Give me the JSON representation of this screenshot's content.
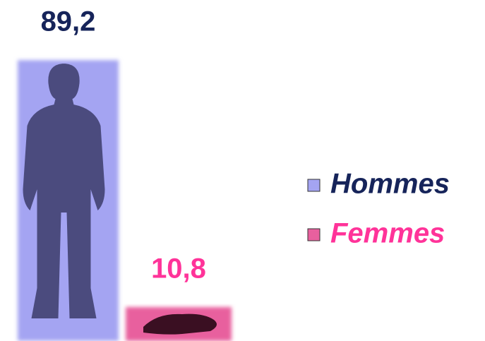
{
  "chart_data": {
    "type": "bar",
    "series": [
      {
        "name": "Hommes",
        "color": "#a4a4f2",
        "text_color": "#16245a",
        "values": [
          89.2
        ],
        "value_labels": [
          "89,2"
        ]
      },
      {
        "name": "Femmes",
        "color": "#e8609e",
        "text_color": "#ff3399",
        "values": [
          10.8
        ],
        "value_labels": [
          "10,8"
        ]
      }
    ]
  }
}
